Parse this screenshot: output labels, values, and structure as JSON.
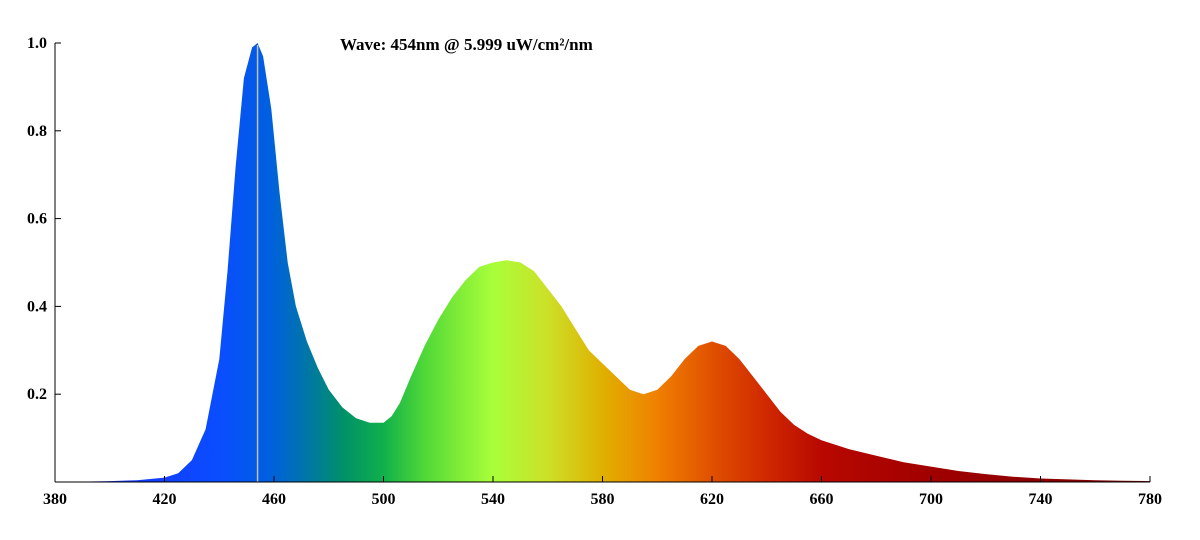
{
  "chart_data": {
    "type": "area",
    "title": "",
    "xlabel": "",
    "ylabel": "",
    "xlim": [
      380,
      780
    ],
    "ylim": [
      0,
      1.0
    ],
    "grid": false,
    "x_ticks": [
      380,
      420,
      460,
      500,
      540,
      580,
      620,
      660,
      700,
      740,
      780
    ],
    "x_tick_labels": [
      "380",
      "420",
      "460",
      "500",
      "540",
      "580",
      "620",
      "660",
      "700",
      "740",
      "780"
    ],
    "y_ticks": [
      0.2,
      0.4,
      0.6,
      0.8,
      1.0
    ],
    "y_tick_labels": [
      "0.2",
      "0.4",
      "0.6",
      "0.8",
      "1.0"
    ],
    "annotation": "Wave: 454nm @ 5.999 uW/cm²/nm",
    "marker_wavelength": 454,
    "series": [
      {
        "x": [
          380,
          390,
          400,
          410,
          420,
          425,
          430,
          435,
          440,
          443,
          446,
          449,
          452,
          454,
          456,
          459,
          462,
          465,
          468,
          472,
          476,
          480,
          485,
          490,
          495,
          500,
          503,
          506,
          510,
          515,
          520,
          525,
          530,
          535,
          540,
          545,
          550,
          555,
          560,
          565,
          570,
          575,
          580,
          585,
          590,
          595,
          600,
          605,
          610,
          615,
          620,
          625,
          630,
          635,
          640,
          645,
          650,
          655,
          660,
          670,
          680,
          690,
          700,
          710,
          720,
          730,
          740,
          750,
          760,
          770,
          780
        ],
        "values": [
          0.0,
          0.001,
          0.002,
          0.004,
          0.01,
          0.02,
          0.05,
          0.12,
          0.28,
          0.48,
          0.72,
          0.92,
          0.99,
          1.0,
          0.97,
          0.85,
          0.66,
          0.5,
          0.4,
          0.32,
          0.26,
          0.21,
          0.17,
          0.145,
          0.135,
          0.135,
          0.15,
          0.18,
          0.24,
          0.31,
          0.37,
          0.42,
          0.46,
          0.49,
          0.5,
          0.505,
          0.5,
          0.48,
          0.44,
          0.4,
          0.35,
          0.3,
          0.27,
          0.24,
          0.21,
          0.2,
          0.21,
          0.24,
          0.28,
          0.31,
          0.32,
          0.31,
          0.28,
          0.24,
          0.2,
          0.16,
          0.13,
          0.11,
          0.095,
          0.075,
          0.06,
          0.045,
          0.035,
          0.025,
          0.018,
          0.012,
          0.008,
          0.006,
          0.004,
          0.003,
          0.002
        ]
      }
    ],
    "gradient_stops": [
      {
        "x": 380,
        "color": "#1e28ff"
      },
      {
        "x": 440,
        "color": "#0a4dff"
      },
      {
        "x": 458,
        "color": "#005fe0"
      },
      {
        "x": 470,
        "color": "#0072b0"
      },
      {
        "x": 485,
        "color": "#00906a"
      },
      {
        "x": 500,
        "color": "#10b04a"
      },
      {
        "x": 515,
        "color": "#50d838"
      },
      {
        "x": 530,
        "color": "#88f038"
      },
      {
        "x": 540,
        "color": "#a8ff3a"
      },
      {
        "x": 560,
        "color": "#cce028"
      },
      {
        "x": 580,
        "color": "#e0b000"
      },
      {
        "x": 600,
        "color": "#f08000"
      },
      {
        "x": 620,
        "color": "#e05000"
      },
      {
        "x": 640,
        "color": "#d02800"
      },
      {
        "x": 660,
        "color": "#b80800"
      },
      {
        "x": 700,
        "color": "#a00000"
      },
      {
        "x": 780,
        "color": "#7a0000"
      }
    ],
    "marker_color": "#c0c0c0"
  }
}
